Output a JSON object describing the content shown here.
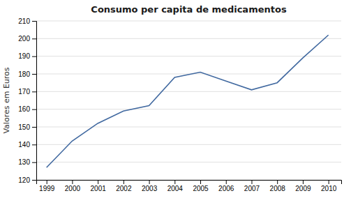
{
  "chart_data": {
    "type": "line",
    "title": "Consumo per capita de medicamentos",
    "ylabel": "Valores em Euros",
    "x": [
      1999,
      2000,
      2001,
      2002,
      2003,
      2004,
      2005,
      2006,
      2007,
      2008,
      2009,
      2010
    ],
    "values": [
      127,
      142,
      152,
      159,
      162,
      178,
      181,
      176,
      171,
      175,
      189,
      202
    ],
    "color": "#4169a0",
    "xlim": [
      1998.6,
      2010.5
    ],
    "xticks": [
      1999,
      2000,
      2001,
      2002,
      2003,
      2004,
      2005,
      2006,
      2007,
      2008,
      2009,
      2010
    ],
    "ylim": [
      120,
      210
    ],
    "yticks": [
      120,
      130,
      140,
      150,
      160,
      170,
      180,
      190,
      200,
      210
    ],
    "grid": true
  }
}
